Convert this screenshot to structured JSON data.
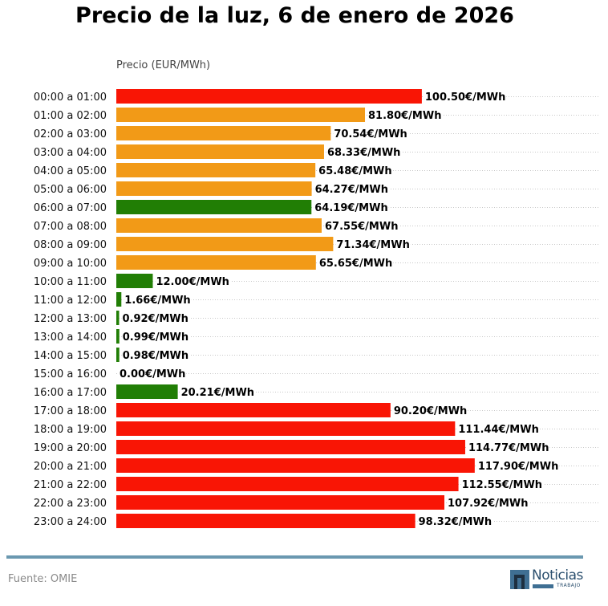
{
  "chart_data": {
    "type": "bar",
    "orientation": "horizontal",
    "title": "Precio de la luz, 6 de enero de 2026",
    "xlabel": "Precio (EUR/MWh)",
    "ylabel": "",
    "value_suffix": "€/MWh",
    "xlim": [
      0,
      120
    ],
    "grid": "dotted horizontal",
    "categories": [
      "00:00 a 01:00",
      "01:00 a 02:00",
      "02:00 a 03:00",
      "03:00 a 04:00",
      "04:00 a 05:00",
      "05:00 a 06:00",
      "06:00 a 07:00",
      "07:00 a 08:00",
      "08:00 a 09:00",
      "09:00 a 10:00",
      "10:00 a 11:00",
      "11:00 a 12:00",
      "12:00 a 13:00",
      "13:00 a 14:00",
      "14:00 a 15:00",
      "15:00 a 16:00",
      "16:00 a 17:00",
      "17:00 a 18:00",
      "18:00 a 19:00",
      "19:00 a 20:00",
      "20:00 a 21:00",
      "21:00 a 22:00",
      "22:00 a 23:00",
      "23:00 a 24:00"
    ],
    "values": [
      100.5,
      81.8,
      70.54,
      68.33,
      65.48,
      64.27,
      64.19,
      67.55,
      71.34,
      65.65,
      12.0,
      1.66,
      0.92,
      0.99,
      0.98,
      0.0,
      20.21,
      90.2,
      111.44,
      114.77,
      117.9,
      112.55,
      107.92,
      98.32
    ],
    "labels": [
      "100.50€/MWh",
      "81.80€/MWh",
      "70.54€/MWh",
      "68.33€/MWh",
      "65.48€/MWh",
      "64.27€/MWh",
      "64.19€/MWh",
      "67.55€/MWh",
      "71.34€/MWh",
      "65.65€/MWh",
      "12.00€/MWh",
      "1.66€/MWh",
      "0.92€/MWh",
      "0.99€/MWh",
      "0.98€/MWh",
      "0.00€/MWh",
      "20.21€/MWh",
      "90.20€/MWh",
      "111.44€/MWh",
      "114.77€/MWh",
      "117.90€/MWh",
      "112.55€/MWh",
      "107.92€/MWh",
      "98.32€/MWh"
    ],
    "price_level": [
      "high",
      "mid",
      "mid",
      "mid",
      "mid",
      "mid",
      "low",
      "mid",
      "mid",
      "mid",
      "low",
      "low",
      "low",
      "low",
      "low",
      "low",
      "low",
      "high",
      "high",
      "high",
      "high",
      "high",
      "high",
      "high"
    ],
    "colors": {
      "high": "#f91505",
      "mid": "#f29a17",
      "low": "#217e05"
    }
  },
  "footer": {
    "source": "Fuente: OMIE",
    "logo_text": "Noticias",
    "logo_subtext": "TRABAJO"
  }
}
